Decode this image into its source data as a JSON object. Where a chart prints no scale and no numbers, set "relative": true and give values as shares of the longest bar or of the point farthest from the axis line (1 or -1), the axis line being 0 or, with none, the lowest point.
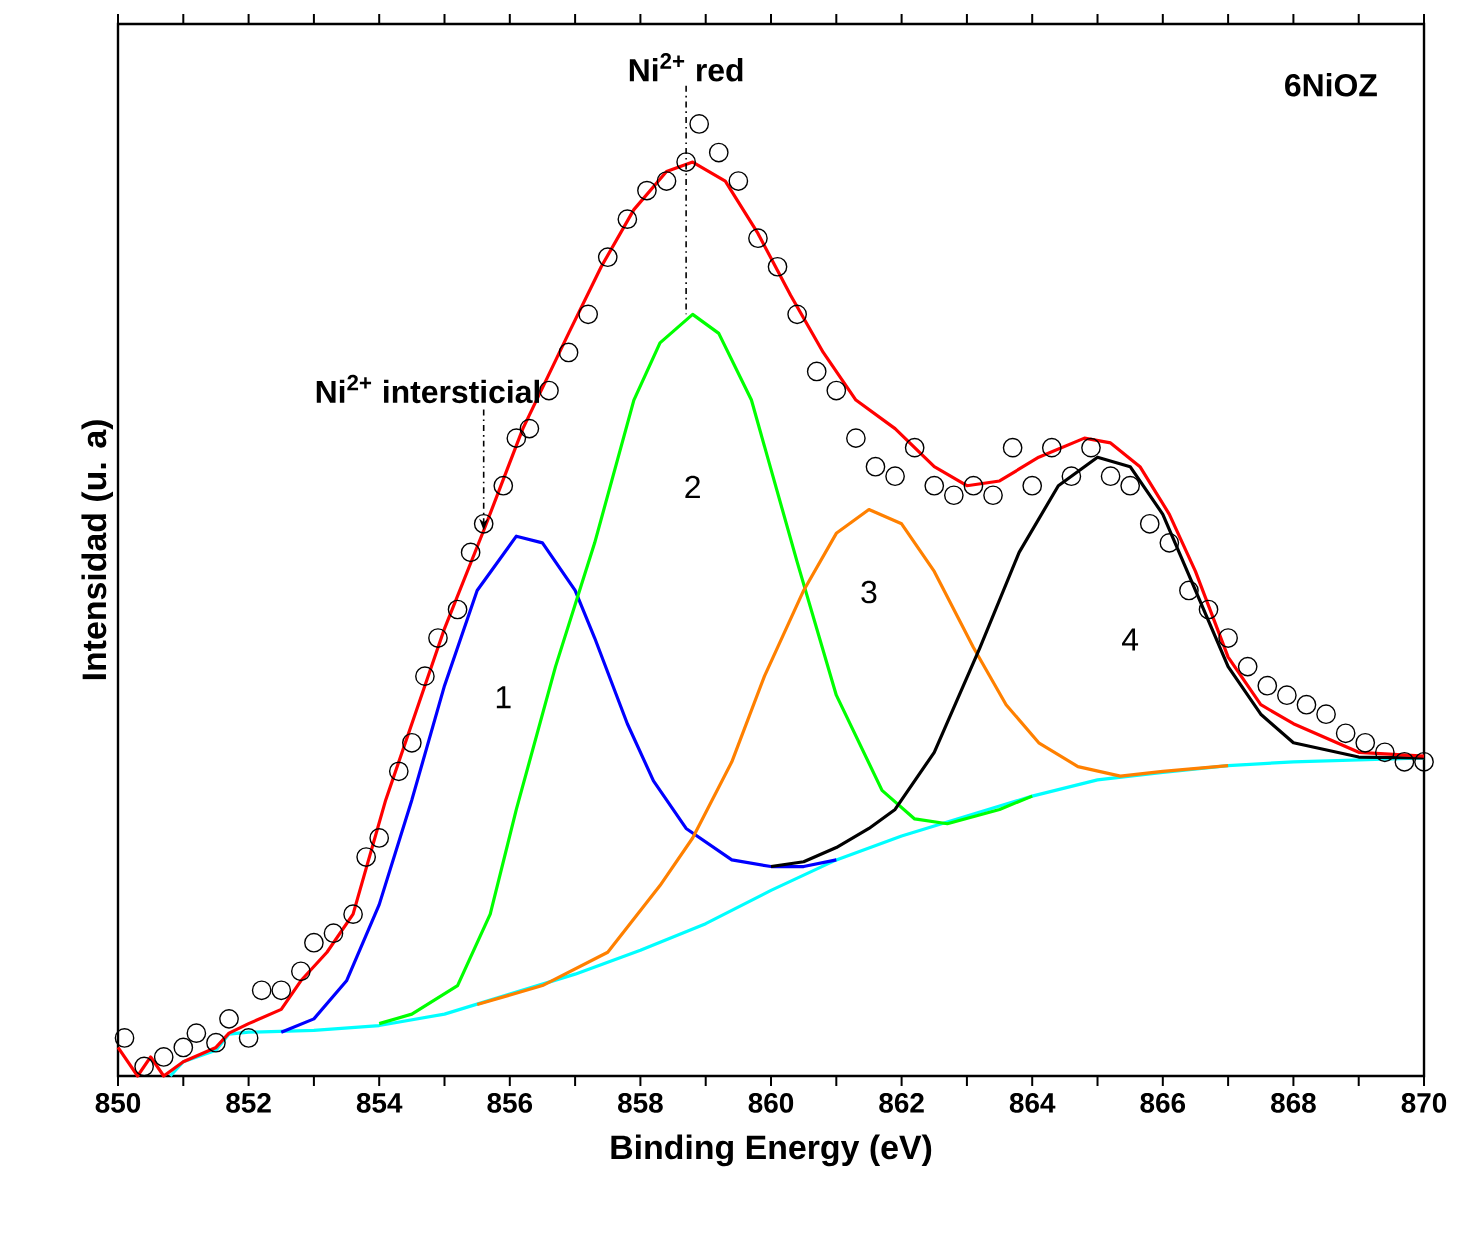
{
  "chart_data": {
    "type": "line",
    "relative": true,
    "xlabel": "Binding Energy (eV)",
    "ylabel": "Intensidad (u. a)",
    "xlim": [
      850,
      870
    ],
    "xticks": [
      850,
      {
        "value": 851,
        "label": null
      },
      852,
      {
        "value": 853,
        "label": null
      },
      854,
      {
        "value": 855,
        "label": null
      },
      856,
      {
        "value": 857,
        "label": null
      },
      858,
      {
        "value": 859,
        "label": null
      },
      860,
      {
        "value": 861,
        "label": null
      },
      862,
      {
        "value": 863,
        "label": null
      },
      864,
      {
        "value": 865,
        "label": null
      },
      866,
      {
        "value": 867,
        "label": null
      },
      868,
      {
        "value": 869,
        "label": null
      },
      870
    ],
    "series": [
      {
        "type": "scatter",
        "marker": "circle",
        "color": "#000000",
        "x": [
          850.1,
          850.4,
          850.7,
          851.0,
          851.2,
          851.5,
          851.7,
          852.0,
          852.2,
          852.5,
          852.8,
          853.0,
          853.3,
          853.6,
          853.8,
          854.0,
          854.3,
          854.5,
          854.7,
          854.9,
          855.2,
          855.4,
          855.6,
          855.9,
          856.1,
          856.3,
          856.6,
          856.9,
          857.2,
          857.5,
          857.8,
          858.1,
          858.4,
          858.7,
          858.9,
          859.2,
          859.5,
          859.8,
          860.1,
          860.4,
          860.7,
          861.0,
          861.3,
          861.6,
          861.9,
          862.2,
          862.5,
          862.8,
          863.1,
          863.4,
          863.7,
          864.0,
          864.3,
          864.6,
          864.9,
          865.2,
          865.5,
          865.8,
          866.1,
          866.4,
          866.7,
          867.0,
          867.3,
          867.6,
          867.9,
          868.2,
          868.5,
          868.8,
          869.1,
          869.4,
          869.7,
          870.0
        ],
        "values": [
          0.04,
          0.01,
          0.02,
          0.03,
          0.045,
          0.035,
          0.06,
          0.04,
          0.09,
          0.09,
          0.11,
          0.14,
          0.15,
          0.17,
          0.23,
          0.25,
          0.32,
          0.35,
          0.42,
          0.46,
          0.49,
          0.55,
          0.58,
          0.62,
          0.67,
          0.68,
          0.72,
          0.76,
          0.8,
          0.86,
          0.9,
          0.93,
          0.94,
          0.96,
          1.0,
          0.97,
          0.94,
          0.88,
          0.85,
          0.8,
          0.74,
          0.72,
          0.67,
          0.64,
          0.63,
          0.66,
          0.62,
          0.61,
          0.62,
          0.61,
          0.66,
          0.62,
          0.66,
          0.63,
          0.66,
          0.63,
          0.62,
          0.58,
          0.56,
          0.51,
          0.49,
          0.46,
          0.43,
          0.41,
          0.4,
          0.39,
          0.38,
          0.36,
          0.35,
          0.34,
          0.33,
          0.33
        ]
      },
      {
        "color": "#00ffff",
        "x": [
          850.8,
          851.0,
          851.5,
          851.7,
          852.0,
          853.0,
          854.0,
          855.0,
          856.0,
          857.0,
          858.0,
          859.0,
          860.0,
          861.0,
          862.0,
          863.0,
          864.0,
          865.0,
          866.0,
          867.0,
          868.0,
          870.0
        ],
        "values": [
          0.0,
          0.015,
          0.027,
          0.044,
          0.046,
          0.048,
          0.053,
          0.065,
          0.086,
          0.107,
          0.132,
          0.16,
          0.195,
          0.227,
          0.252,
          0.273,
          0.294,
          0.311,
          0.319,
          0.326,
          0.33,
          0.334
        ]
      },
      {
        "color": "#0000ff",
        "x": [
          852.5,
          853.0,
          853.5,
          854.0,
          854.5,
          855.0,
          855.5,
          856.1,
          856.5,
          857.0,
          857.3,
          857.8,
          858.2,
          858.7,
          859.4,
          860.0,
          860.5,
          861.0
        ],
        "values": [
          0.046,
          0.06,
          0.1,
          0.18,
          0.29,
          0.41,
          0.51,
          0.567,
          0.56,
          0.51,
          0.46,
          0.37,
          0.31,
          0.26,
          0.227,
          0.22,
          0.22,
          0.227
        ]
      },
      {
        "color": "#00ff00",
        "x": [
          854.0,
          854.5,
          855.2,
          855.7,
          856.1,
          856.7,
          857.3,
          857.9,
          858.3,
          858.8,
          859.2,
          859.7,
          860.4,
          861.0,
          861.7,
          862.2,
          862.7,
          863.5,
          864.0
        ],
        "values": [
          0.055,
          0.065,
          0.095,
          0.17,
          0.28,
          0.43,
          0.56,
          0.71,
          0.77,
          0.8,
          0.78,
          0.71,
          0.54,
          0.4,
          0.3,
          0.27,
          0.265,
          0.28,
          0.294
        ]
      },
      {
        "color": "#ff8000",
        "x": [
          855.5,
          856.5,
          857.5,
          858.3,
          858.8,
          859.4,
          859.9,
          860.5,
          861.0,
          861.5,
          862.0,
          862.5,
          863.1,
          863.6,
          864.1,
          864.7,
          865.35,
          866.0,
          867.0
        ],
        "values": [
          0.075,
          0.095,
          0.13,
          0.2,
          0.25,
          0.33,
          0.42,
          0.51,
          0.57,
          0.595,
          0.58,
          0.53,
          0.45,
          0.39,
          0.35,
          0.325,
          0.315,
          0.32,
          0.326
        ]
      },
      {
        "color": "#000000",
        "x": [
          860.0,
          860.5,
          861.0,
          861.5,
          861.9,
          862.5,
          863.2,
          863.8,
          864.4,
          865.0,
          865.5,
          866.0,
          866.5,
          867.0,
          867.5,
          868.0,
          869.0,
          870.0
        ],
        "values": [
          0.22,
          0.225,
          0.24,
          0.26,
          0.28,
          0.34,
          0.45,
          0.55,
          0.62,
          0.65,
          0.64,
          0.59,
          0.51,
          0.43,
          0.38,
          0.35,
          0.335,
          0.334
        ]
      },
      {
        "color": "#ff0000",
        "x": [
          850.0,
          850.3,
          850.5,
          850.7,
          851.0,
          851.5,
          851.7,
          852.0,
          852.5,
          852.8,
          853.2,
          853.6,
          854.1,
          854.5,
          855.0,
          855.6,
          856.2,
          856.9,
          857.4,
          857.9,
          858.4,
          858.8,
          859.3,
          859.8,
          860.3,
          860.8,
          861.3,
          861.9,
          862.5,
          863.0,
          863.5,
          864.1,
          864.8,
          865.2,
          865.65,
          866.1,
          866.5,
          867.0,
          867.5,
          868.0,
          869.0,
          870.0
        ],
        "values": [
          0.03,
          0.0,
          0.02,
          0.0,
          0.015,
          0.03,
          0.045,
          0.055,
          0.07,
          0.1,
          0.13,
          0.17,
          0.29,
          0.37,
          0.47,
          0.573,
          0.68,
          0.78,
          0.85,
          0.91,
          0.95,
          0.96,
          0.94,
          0.885,
          0.82,
          0.76,
          0.71,
          0.68,
          0.64,
          0.62,
          0.625,
          0.65,
          0.67,
          0.665,
          0.64,
          0.59,
          0.53,
          0.44,
          0.39,
          0.37,
          0.34,
          0.336
        ]
      }
    ],
    "annotations": [
      {
        "text": "Ni$^{2+}$ red",
        "x": 858.7,
        "y": 0.8
      },
      {
        "text": "Ni$^{2+}$ intersticial",
        "x": 855.6,
        "y": 0.573
      },
      "1",
      "2",
      "3",
      "4",
      "6NiOZ"
    ]
  }
}
